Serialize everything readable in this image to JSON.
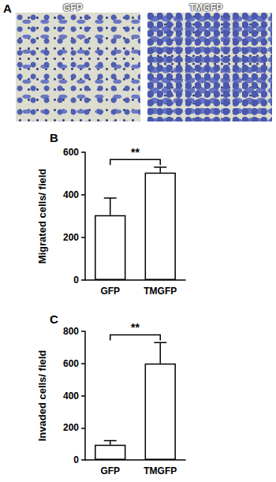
{
  "image_panel": {
    "label": "A",
    "images": [
      "GFP",
      "TMGFP"
    ]
  },
  "chart_data": [
    {
      "type": "bar",
      "title": "B",
      "y_label": "Migrated cells/ field",
      "categories": [
        "GFP",
        "TMGFP"
      ],
      "values": [
        305,
        505
      ],
      "errors": [
        80,
        25
      ],
      "color": "#ffffff",
      "ylim": [
        0,
        600
      ],
      "yticks": [
        0,
        200,
        400,
        600
      ],
      "grid": false,
      "annotations": [
        {
          "text": "**",
          "between": [
            "GFP",
            "TMGFP"
          ]
        }
      ]
    },
    {
      "type": "bar",
      "title": "C",
      "y_label": "Invaded cells/ field",
      "categories": [
        "GFP",
        "TMGFP"
      ],
      "values": [
        95,
        600
      ],
      "errors": [
        25,
        130
      ],
      "color": "#ffffff",
      "ylim": [
        0,
        800
      ],
      "yticks": [
        0,
        200,
        400,
        600,
        800
      ],
      "grid": false,
      "annotations": [
        {
          "text": "**",
          "between": [
            "GFP",
            "TMGFP"
          ]
        }
      ]
    }
  ]
}
